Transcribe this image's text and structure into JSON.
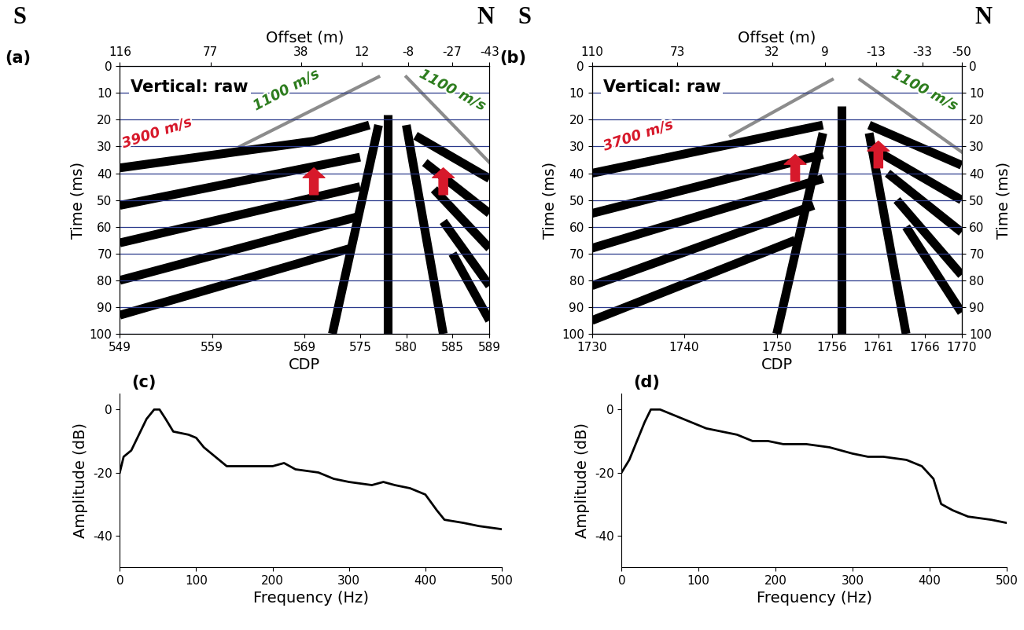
{
  "chart_data": [
    {
      "type": "seismic",
      "panel_label": "(a)",
      "left_label": "S",
      "right_label": "N",
      "title": "Vertical: raw",
      "x_label": "CDP",
      "x2_label": "Offset (m)",
      "y_label": "Time (ms)",
      "xlim": [
        549,
        589
      ],
      "xticks": [
        549,
        559,
        569,
        575,
        580,
        585,
        589
      ],
      "x2lim": [
        116,
        -43
      ],
      "x2ticks": [
        116,
        77,
        38,
        12,
        -8,
        -27,
        -43
      ],
      "ylim": [
        100,
        0
      ],
      "yticks": [
        0,
        10,
        20,
        30,
        40,
        50,
        60,
        70,
        80,
        90,
        100
      ],
      "grid": "y",
      "direct_wave_labels": [
        {
          "text": "1100 m/s",
          "x": 567,
          "t": 9,
          "color": "#2e7d1f"
        },
        {
          "text": "1100 m/s",
          "x": 585,
          "t": 9,
          "color": "#2e7d1f"
        }
      ],
      "refraction_labels": [
        {
          "text": "3900 m/s",
          "x": 553,
          "t": 25,
          "color": "#d7192b"
        }
      ],
      "arrows": [
        {
          "x": 570,
          "t": 38,
          "color": "#d7192b"
        },
        {
          "x": 584,
          "t": 38,
          "color": "#d7192b"
        }
      ],
      "direct_waves": [
        {
          "x": [
            562,
            577
          ],
          "t": [
            30,
            4
          ],
          "color": "#8c8c8c"
        },
        {
          "x": [
            589,
            580
          ],
          "t": [
            36,
            4
          ],
          "color": "#8c8c8c"
        }
      ],
      "events": [
        {
          "x": [
            549,
            570,
            576
          ],
          "t": [
            38,
            28,
            22
          ],
          "color": "#000000"
        },
        {
          "x": [
            549,
            575
          ],
          "t": [
            52,
            34
          ],
          "color": "#000000"
        },
        {
          "x": [
            549,
            575
          ],
          "t": [
            66,
            45
          ],
          "color": "#000000"
        },
        {
          "x": [
            549,
            575
          ],
          "t": [
            80,
            56
          ],
          "color": "#000000"
        },
        {
          "x": [
            549,
            574
          ],
          "t": [
            93,
            68
          ],
          "color": "#000000"
        },
        {
          "x": [
            589,
            581
          ],
          "t": [
            42,
            26
          ],
          "color": "#000000"
        },
        {
          "x": [
            589,
            582
          ],
          "t": [
            55,
            36
          ],
          "color": "#000000"
        },
        {
          "x": [
            589,
            583
          ],
          "t": [
            68,
            46
          ],
          "color": "#000000"
        },
        {
          "x": [
            589,
            584
          ],
          "t": [
            82,
            58
          ],
          "color": "#000000"
        },
        {
          "x": [
            589,
            585
          ],
          "t": [
            95,
            70
          ],
          "color": "#000000"
        },
        {
          "x": [
            578,
            578
          ],
          "t": [
            18,
            100
          ],
          "color": "#000000"
        },
        {
          "x": [
            572,
            577
          ],
          "t": [
            100,
            22
          ],
          "color": "#000000"
        },
        {
          "x": [
            584,
            580
          ],
          "t": [
            100,
            22
          ],
          "color": "#000000"
        }
      ]
    },
    {
      "type": "seismic",
      "panel_label": "(b)",
      "left_label": "S",
      "right_label": "N",
      "title": "Vertical: raw",
      "x_label": "CDP",
      "x2_label": "Offset (m)",
      "y_label": "Time (ms)",
      "y2_label": "Time (ms)",
      "xlim": [
        1730,
        1770
      ],
      "xticks": [
        1730,
        1740,
        1750,
        1756,
        1761,
        1766,
        1770
      ],
      "x2lim": [
        110,
        -50
      ],
      "x2ticks": [
        110,
        73,
        32,
        9,
        -13,
        -33,
        -50
      ],
      "ylim": [
        100,
        0
      ],
      "yticks": [
        0,
        10,
        20,
        30,
        40,
        50,
        60,
        70,
        80,
        90,
        100
      ],
      "y2lim": [
        100,
        0
      ],
      "y2ticks": [
        0,
        10,
        20,
        30,
        40,
        50,
        60,
        70,
        80,
        90,
        100
      ],
      "grid": "y",
      "direct_wave_labels": [
        {
          "text": "1100 m/s",
          "x": 1766,
          "t": 9,
          "color": "#2e7d1f"
        }
      ],
      "refraction_labels": [
        {
          "text": "3700 m/s",
          "x": 1735,
          "t": 26,
          "color": "#d7192b"
        }
      ],
      "arrows": [
        {
          "x": 1752,
          "t": 33,
          "color": "#d7192b"
        },
        {
          "x": 1761,
          "t": 28,
          "color": "#d7192b"
        }
      ],
      "direct_waves": [
        {
          "x": [
            1745,
            1756
          ],
          "t": [
            26,
            5
          ],
          "color": "#8c8c8c"
        },
        {
          "x": [
            1770,
            1759
          ],
          "t": [
            32,
            5
          ],
          "color": "#8c8c8c"
        }
      ],
      "events": [
        {
          "x": [
            1730,
            1755
          ],
          "t": [
            40,
            22
          ],
          "color": "#000000"
        },
        {
          "x": [
            1730,
            1755
          ],
          "t": [
            55,
            33
          ],
          "color": "#000000"
        },
        {
          "x": [
            1730,
            1755
          ],
          "t": [
            68,
            42
          ],
          "color": "#000000"
        },
        {
          "x": [
            1730,
            1754
          ],
          "t": [
            82,
            52
          ],
          "color": "#000000"
        },
        {
          "x": [
            1730,
            1752
          ],
          "t": [
            95,
            65
          ],
          "color": "#000000"
        },
        {
          "x": [
            1770,
            1760
          ],
          "t": [
            37,
            22
          ],
          "color": "#000000"
        },
        {
          "x": [
            1770,
            1761
          ],
          "t": [
            50,
            32
          ],
          "color": "#000000"
        },
        {
          "x": [
            1770,
            1762
          ],
          "t": [
            62,
            40
          ],
          "color": "#000000"
        },
        {
          "x": [
            1770,
            1763
          ],
          "t": [
            78,
            50
          ],
          "color": "#000000"
        },
        {
          "x": [
            1770,
            1764
          ],
          "t": [
            92,
            60
          ],
          "color": "#000000"
        },
        {
          "x": [
            1757,
            1757
          ],
          "t": [
            15,
            100
          ],
          "color": "#000000"
        },
        {
          "x": [
            1750,
            1755
          ],
          "t": [
            100,
            25
          ],
          "color": "#000000"
        },
        {
          "x": [
            1764,
            1760
          ],
          "t": [
            100,
            25
          ],
          "color": "#000000"
        }
      ]
    },
    {
      "type": "line",
      "panel_label": "(c)",
      "x_label": "Frequency (Hz)",
      "y_label": "Amplitude (dB)",
      "xlim": [
        0,
        500
      ],
      "xticks": [
        0,
        100,
        200,
        300,
        400,
        500
      ],
      "ylim": [
        -50,
        5
      ],
      "yticks": [
        -40,
        -20,
        0
      ],
      "color": "#000000",
      "x": [
        0,
        5,
        15,
        25,
        35,
        45,
        52,
        60,
        70,
        90,
        100,
        110,
        130,
        140,
        160,
        200,
        215,
        230,
        260,
        280,
        300,
        330,
        345,
        360,
        380,
        400,
        415,
        425,
        450,
        470,
        500
      ],
      "values": [
        -20,
        -15,
        -13,
        -8,
        -3,
        0,
        0,
        -3,
        -7,
        -8,
        -9,
        -12,
        -16,
        -18,
        -18,
        -18,
        -17,
        -19,
        -20,
        -22,
        -23,
        -24,
        -23,
        -24,
        -25,
        -27,
        -32,
        -35,
        -36,
        -37,
        -38
      ]
    },
    {
      "type": "line",
      "panel_label": "(d)",
      "x_label": "Frequency (Hz)",
      "y_label": "Amplitude (dB)",
      "xlim": [
        0,
        500
      ],
      "xticks": [
        0,
        100,
        200,
        300,
        400,
        500
      ],
      "ylim": [
        -50,
        5
      ],
      "yticks": [
        -40,
        -20,
        0
      ],
      "color": "#000000",
      "x": [
        0,
        10,
        20,
        30,
        38,
        50,
        60,
        70,
        90,
        110,
        130,
        150,
        170,
        190,
        210,
        240,
        270,
        300,
        320,
        340,
        370,
        390,
        405,
        415,
        430,
        450,
        480,
        500
      ],
      "values": [
        -20,
        -16,
        -10,
        -4,
        0,
        0,
        -1,
        -2,
        -4,
        -6,
        -7,
        -8,
        -10,
        -10,
        -11,
        -11,
        -12,
        -14,
        -15,
        -15,
        -16,
        -18,
        -22,
        -30,
        -32,
        -34,
        -35,
        -36
      ]
    }
  ]
}
